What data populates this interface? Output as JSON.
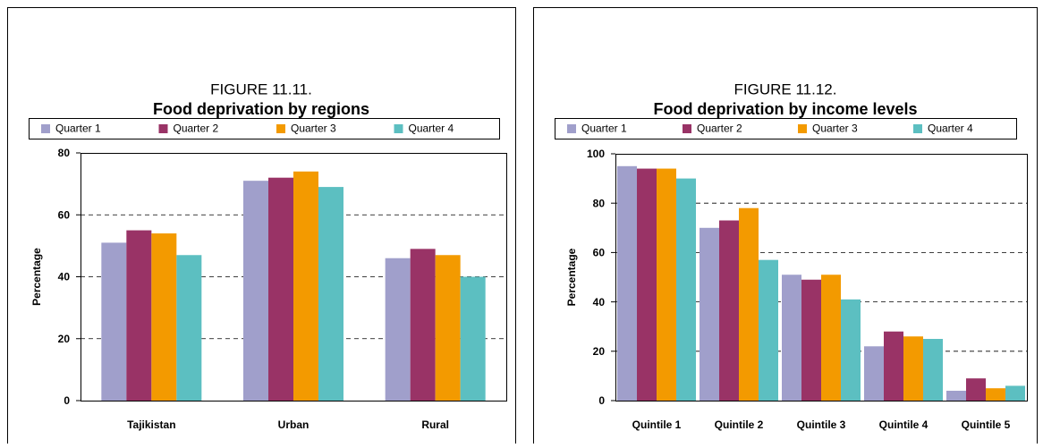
{
  "chart_data": [
    {
      "type": "bar",
      "figure_label": "FIGURE 11.11.",
      "title": "Food deprivation by regions",
      "y_label": "Percentage",
      "categories": [
        "Tajikistan",
        "Urban",
        "Rural"
      ],
      "series": [
        {
          "name": "Quarter 1",
          "color": "#a09fcb",
          "values": [
            51,
            71,
            46
          ]
        },
        {
          "name": "Quarter 2",
          "color": "#993366",
          "values": [
            55,
            72,
            49
          ]
        },
        {
          "name": "Quarter 3",
          "color": "#f39a00",
          "values": [
            54,
            74,
            47
          ]
        },
        {
          "name": "Quarter 4",
          "color": "#5cbfc1",
          "values": [
            47,
            69,
            40
          ]
        }
      ],
      "ylim": [
        0,
        80
      ],
      "yticks": [
        0,
        20,
        40,
        60,
        80
      ],
      "grid": true
    },
    {
      "type": "bar",
      "figure_label": "FIGURE 11.12.",
      "title": "Food deprivation by income levels",
      "y_label": "Percentage",
      "categories": [
        "Quintile 1",
        "Quintile 2",
        "Quintile 3",
        "Quintile 4",
        "Quintile 5"
      ],
      "series": [
        {
          "name": "Quarter 1",
          "color": "#a09fcb",
          "values": [
            95,
            70,
            51,
            22,
            4
          ]
        },
        {
          "name": "Quarter 2",
          "color": "#993366",
          "values": [
            94,
            73,
            49,
            28,
            9
          ]
        },
        {
          "name": "Quarter 3",
          "color": "#f39a00",
          "values": [
            94,
            78,
            51,
            26,
            5
          ]
        },
        {
          "name": "Quarter 4",
          "color": "#5cbfc1",
          "values": [
            90,
            57,
            41,
            25,
            6
          ]
        }
      ],
      "ylim": [
        0,
        100
      ],
      "yticks": [
        0,
        20,
        40,
        60,
        80,
        100
      ],
      "grid": true
    }
  ]
}
